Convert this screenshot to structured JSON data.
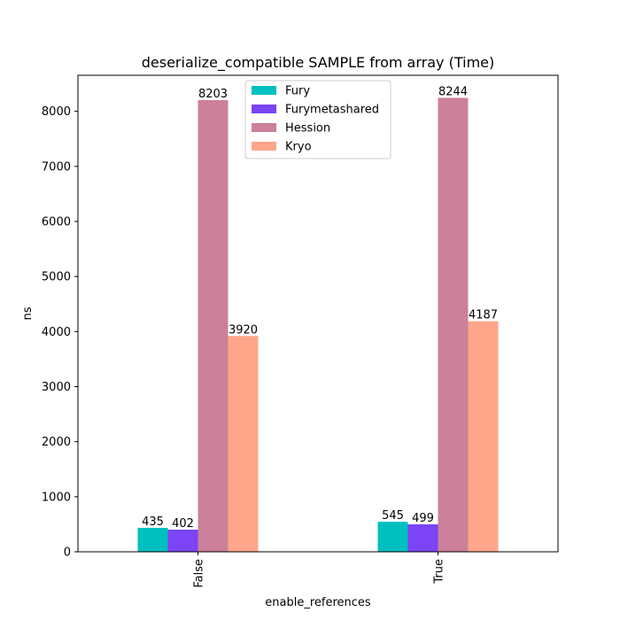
{
  "chart_data": {
    "type": "bar",
    "title": "deserialize_compatible SAMPLE from array (Time)",
    "xlabel": "enable_references",
    "ylabel": "ns",
    "categories": [
      "False",
      "True"
    ],
    "ylim": [
      0,
      8654
    ],
    "yticks": [
      0,
      1000,
      2000,
      3000,
      4000,
      5000,
      6000,
      7000,
      8000
    ],
    "grid": false,
    "legend_position": "top-center",
    "series": [
      {
        "name": "Fury",
        "color": "#00bfbf",
        "values": [
          435,
          545
        ]
      },
      {
        "name": "Furymetashared",
        "color": "#7b44f5",
        "values": [
          402,
          499
        ]
      },
      {
        "name": "Hession",
        "color": "#cc8099",
        "values": [
          8203,
          8244
        ]
      },
      {
        "name": "Kryo",
        "color": "#ffa68a",
        "values": [
          3920,
          4187
        ]
      }
    ]
  }
}
